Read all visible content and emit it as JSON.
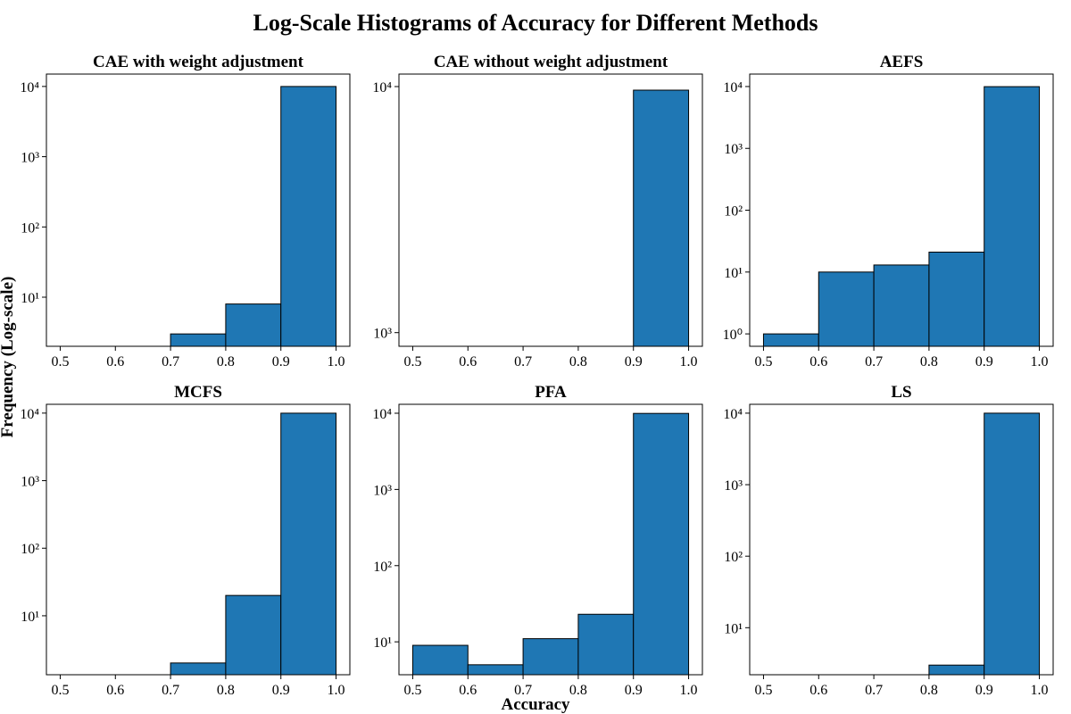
{
  "title": "Log-Scale Histograms of Accuracy for Different Methods",
  "x_label": "Accuracy",
  "y_label": "Frequency (Log-scale)",
  "chart_data": [
    {
      "type": "histogram",
      "title": "CAE with weight adjustment",
      "bins": [
        0.5,
        0.6,
        0.7,
        0.8,
        0.9,
        {
          "value": 1,
          "label": "1.0"
        }
      ],
      "values": [
        0,
        0,
        3,
        8,
        9989
      ],
      "color": "#1f77b4",
      "edgecolor": "#000000",
      "log_y": true,
      "xlim": [
        0.475,
        1.025
      ],
      "xticks": [
        0.5,
        0.6,
        0.7,
        0.8,
        0.9,
        {
          "value": 1,
          "label": "1.0"
        }
      ],
      "ylim": [
        2,
        15000
      ],
      "yticks": [
        {
          "value": 10,
          "label": "10¹"
        },
        {
          "value": 100,
          "label": "10²"
        },
        {
          "value": 1000,
          "label": "10³"
        },
        {
          "value": 10000,
          "label": "10⁴"
        }
      ]
    },
    {
      "type": "histogram",
      "title": "CAE without weight adjustment",
      "bins": [
        0.5,
        0.6,
        0.7,
        0.8,
        0.9,
        {
          "value": 1,
          "label": "1.0"
        }
      ],
      "values": [
        0,
        0,
        0,
        0,
        9670
      ],
      "color": "#1f77b4",
      "edgecolor": "#000000",
      "log_y": true,
      "xlim": [
        0.475,
        1.025
      ],
      "xticks": [
        0.5,
        0.6,
        0.7,
        0.8,
        0.9,
        {
          "value": 1,
          "label": "1.0"
        }
      ],
      "ylim": [
        880,
        11240
      ],
      "yticks": [
        {
          "value": 1000,
          "label": "10³"
        },
        {
          "value": 10000,
          "label": "10⁴"
        }
      ]
    },
    {
      "type": "histogram",
      "title": "AEFS",
      "bins": [
        0.5,
        0.6,
        0.7,
        0.8,
        0.9,
        {
          "value": 1,
          "label": "1.0"
        }
      ],
      "values": [
        1,
        10,
        13,
        21,
        9955
      ],
      "color": "#1f77b4",
      "edgecolor": "#000000",
      "log_y": true,
      "xlim": [
        0.475,
        1.025
      ],
      "xticks": [
        0.5,
        0.6,
        0.7,
        0.8,
        0.9,
        {
          "value": 1,
          "label": "1.0"
        }
      ],
      "ylim": [
        0.63,
        15900
      ],
      "yticks": [
        {
          "value": 1,
          "label": "10⁰"
        },
        {
          "value": 10,
          "label": "10¹"
        },
        {
          "value": 100,
          "label": "10²"
        },
        {
          "value": 1000,
          "label": "10³"
        },
        {
          "value": 10000,
          "label": "10⁴"
        }
      ]
    },
    {
      "type": "histogram",
      "title": "MCFS",
      "bins": [
        0.5,
        0.6,
        0.7,
        0.8,
        0.9,
        {
          "value": 1,
          "label": "1.0"
        }
      ],
      "values": [
        0,
        0,
        2,
        20,
        9978
      ],
      "color": "#1f77b4",
      "edgecolor": "#000000",
      "log_y": true,
      "xlim": [
        0.475,
        1.025
      ],
      "xticks": [
        0.5,
        0.6,
        0.7,
        0.8,
        0.9,
        {
          "value": 1,
          "label": "1.0"
        }
      ],
      "ylim": [
        1.34,
        13500
      ],
      "yticks": [
        {
          "value": 10,
          "label": "10¹"
        },
        {
          "value": 100,
          "label": "10²"
        },
        {
          "value": 1000,
          "label": "10³"
        },
        {
          "value": 10000,
          "label": "10⁴"
        }
      ]
    },
    {
      "type": "histogram",
      "title": "PFA",
      "bins": [
        0.5,
        0.6,
        0.7,
        0.8,
        0.9,
        {
          "value": 1,
          "label": "1.0"
        }
      ],
      "values": [
        9,
        5,
        11,
        23,
        9952
      ],
      "color": "#1f77b4",
      "edgecolor": "#000000",
      "log_y": true,
      "xlim": [
        0.475,
        1.025
      ],
      "xticks": [
        0.5,
        0.6,
        0.7,
        0.8,
        0.9,
        {
          "value": 1,
          "label": "1.0"
        }
      ],
      "ylim": [
        3.7,
        13100
      ],
      "yticks": [
        {
          "value": 10,
          "label": "10¹"
        },
        {
          "value": 100,
          "label": "10²"
        },
        {
          "value": 1000,
          "label": "10³"
        },
        {
          "value": 10000,
          "label": "10⁴"
        }
      ]
    },
    {
      "type": "histogram",
      "title": "LS",
      "bins": [
        0.5,
        0.6,
        0.7,
        0.8,
        0.9,
        {
          "value": 1,
          "label": "1.0"
        }
      ],
      "values": [
        0,
        0,
        0,
        3,
        9997
      ],
      "color": "#1f77b4",
      "edgecolor": "#000000",
      "log_y": true,
      "xlim": [
        0.475,
        1.025
      ],
      "xticks": [
        0.5,
        0.6,
        0.7,
        0.8,
        0.9,
        {
          "value": 1,
          "label": "1.0"
        }
      ],
      "ylim": [
        2.2,
        13300
      ],
      "yticks": [
        {
          "value": 10,
          "label": "10¹"
        },
        {
          "value": 100,
          "label": "10²"
        },
        {
          "value": 1000,
          "label": "10³"
        },
        {
          "value": 10000,
          "label": "10⁴"
        }
      ]
    }
  ]
}
